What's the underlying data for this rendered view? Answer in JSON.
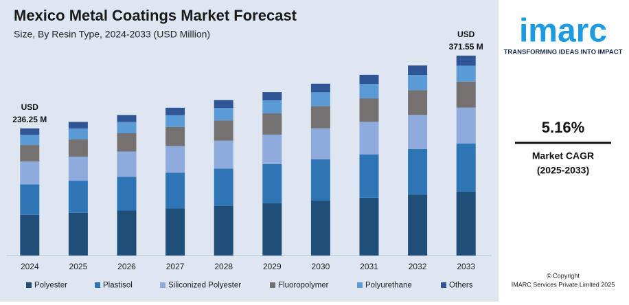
{
  "chart_data": {
    "type": "stacked_bar",
    "title": "Mexico Metal Coatings Market Forecast",
    "subtitle": "Size, By Resin Type, 2024-2033 (USD Million)",
    "categories": [
      "2024",
      "2025",
      "2026",
      "2027",
      "2028",
      "2029",
      "2030",
      "2031",
      "2032",
      "2033"
    ],
    "series": [
      {
        "name": "Polyester",
        "color": "#1f4e79",
        "values": [
          75.6,
          79.5,
          83.6,
          87.9,
          92.4,
          97.2,
          102.2,
          107.5,
          113.1,
          118.9
        ]
      },
      {
        "name": "Plastisol",
        "color": "#2e75b6",
        "values": [
          56.7,
          59.6,
          62.7,
          66.0,
          69.3,
          72.9,
          76.7,
          80.6,
          84.8,
          89.2
        ]
      },
      {
        "name": "Siliconized Polyester",
        "color": "#8faadc",
        "values": [
          42.5,
          44.7,
          47.0,
          49.5,
          52.0,
          54.7,
          57.5,
          60.5,
          63.6,
          66.9
        ]
      },
      {
        "name": "Fluoropolymer",
        "color": "#767171",
        "values": [
          30.7,
          32.3,
          34.0,
          35.7,
          37.6,
          39.5,
          41.5,
          43.7,
          45.9,
          48.3
        ]
      },
      {
        "name": "Polyurethane",
        "color": "#5b9bd5",
        "values": [
          18.9,
          19.9,
          20.9,
          22.0,
          23.1,
          24.3,
          25.6,
          26.9,
          28.3,
          29.7
        ]
      },
      {
        "name": "Others",
        "color": "#2f5597",
        "values": [
          11.9,
          12.4,
          13.1,
          13.7,
          14.5,
          15.2,
          16.0,
          16.8,
          17.6,
          18.6
        ]
      }
    ],
    "annotations": [
      {
        "category": "2024",
        "lines": [
          "USD",
          "236.25 M"
        ]
      },
      {
        "category": "2033",
        "lines": [
          "USD",
          "371.55 M"
        ]
      }
    ],
    "legend": "bottom"
  },
  "side_panel": {
    "logo": "imarc",
    "tagline": "TRANSFORMING IDEAS INTO IMPACT",
    "cagr_value": "5.16%",
    "cagr_label": "Market CAGR",
    "cagr_period": "(2025-2033)",
    "copyright": "© Copyright",
    "company": "IMARC Services Private Limited 2025"
  }
}
